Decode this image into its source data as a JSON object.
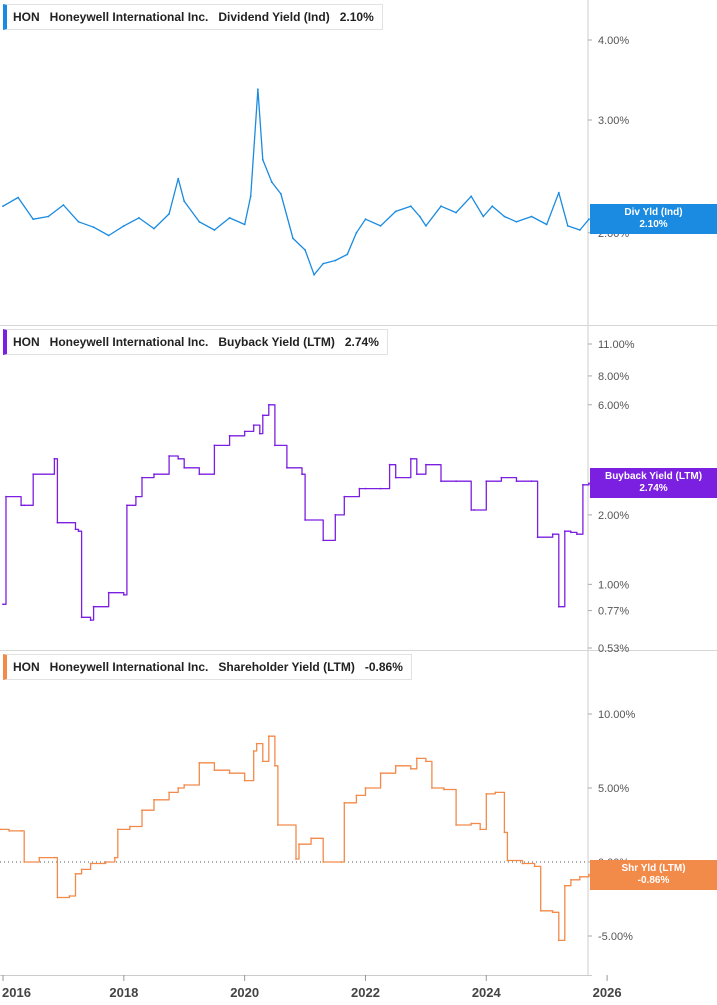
{
  "chart_data": [
    {
      "type": "line",
      "ticker": "HON",
      "company": "Honeywell International Inc.",
      "series_name": "Dividend Yield (Ind)",
      "current_value": "2.10%",
      "badge_label": "Div Yld (Ind)",
      "badge_value": "2.10%",
      "color": "#1a8be0",
      "scale": "log",
      "y_ticks": [
        4.0,
        3.0,
        2.0
      ],
      "y_tick_labels": [
        "4.00%",
        "3.00%",
        "2.00%"
      ],
      "x": [
        2016.0,
        2016.25,
        2016.5,
        2016.75,
        2017.0,
        2017.25,
        2017.5,
        2017.75,
        2018.0,
        2018.25,
        2018.5,
        2018.75,
        2018.9,
        2019.0,
        2019.25,
        2019.5,
        2019.75,
        2020.0,
        2020.1,
        2020.22,
        2020.3,
        2020.45,
        2020.6,
        2020.8,
        2021.0,
        2021.15,
        2021.3,
        2021.5,
        2021.7,
        2021.85,
        2022.0,
        2022.25,
        2022.5,
        2022.75,
        2022.9,
        2023.0,
        2023.25,
        2023.5,
        2023.75,
        2023.95,
        2024.1,
        2024.3,
        2024.5,
        2024.75,
        2025.0,
        2025.2,
        2025.35,
        2025.55,
        2025.7
      ],
      "y": [
        2.2,
        2.27,
        2.1,
        2.12,
        2.21,
        2.08,
        2.04,
        1.98,
        2.05,
        2.11,
        2.03,
        2.14,
        2.43,
        2.24,
        2.08,
        2.02,
        2.11,
        2.06,
        2.28,
        3.35,
        2.6,
        2.4,
        2.3,
        1.96,
        1.88,
        1.72,
        1.79,
        1.81,
        1.85,
        2.0,
        2.1,
        2.05,
        2.16,
        2.2,
        2.12,
        2.05,
        2.2,
        2.15,
        2.28,
        2.12,
        2.2,
        2.12,
        2.08,
        2.12,
        2.06,
        2.31,
        2.05,
        2.02,
        2.1
      ],
      "xlim": [
        2015.95,
        2025.75
      ]
    },
    {
      "type": "line",
      "ticker": "HON",
      "company": "Honeywell International Inc.",
      "series_name": "Buyback Yield (LTM)",
      "current_value": "2.74%",
      "badge_label": "Buyback Yield (LTM)",
      "badge_value": "2.74%",
      "color": "#7b1fe0",
      "scale": "log",
      "y_ticks": [
        11.0,
        8.0,
        6.0,
        2.0,
        1.0,
        0.77,
        0.53
      ],
      "y_tick_labels": [
        "11.00%",
        "8.00%",
        "6.00%",
        "2.00%",
        "1.00%",
        "0.77%",
        "0.53%"
      ],
      "x": [
        2016.0,
        2016.05,
        2016.3,
        2016.35,
        2016.5,
        2016.85,
        2016.9,
        2017.2,
        2017.25,
        2017.3,
        2017.45,
        2017.5,
        2017.75,
        2018.0,
        2018.05,
        2018.2,
        2018.3,
        2018.5,
        2018.75,
        2018.9,
        2019.0,
        2019.25,
        2019.5,
        2019.75,
        2020.0,
        2020.15,
        2020.25,
        2020.3,
        2020.4,
        2020.5,
        2020.7,
        2020.95,
        2021.0,
        2021.3,
        2021.5,
        2021.65,
        2021.9,
        2022.0,
        2022.25,
        2022.4,
        2022.5,
        2022.75,
        2022.85,
        2023.0,
        2023.25,
        2023.5,
        2023.75,
        2023.8,
        2024.0,
        2024.25,
        2024.5,
        2024.75,
        2024.85,
        2025.1,
        2025.2,
        2025.3,
        2025.4,
        2025.5,
        2025.6,
        2025.7
      ],
      "y": [
        0.82,
        2.4,
        2.2,
        2.2,
        3.0,
        3.5,
        1.85,
        1.73,
        1.7,
        0.72,
        0.7,
        0.8,
        0.92,
        0.9,
        2.2,
        2.4,
        2.9,
        3.0,
        3.6,
        3.5,
        3.2,
        3.0,
        4.0,
        4.4,
        4.6,
        4.9,
        4.5,
        5.4,
        6.0,
        4.0,
        3.2,
        3.0,
        1.9,
        1.55,
        2.0,
        2.4,
        2.6,
        2.6,
        2.6,
        3.3,
        2.9,
        3.5,
        3.0,
        3.3,
        2.8,
        2.8,
        2.1,
        2.1,
        2.8,
        2.9,
        2.8,
        2.8,
        1.6,
        1.65,
        0.8,
        1.7,
        1.68,
        1.65,
        2.7,
        2.74
      ],
      "xlim": [
        2015.95,
        2025.75
      ]
    },
    {
      "type": "line",
      "ticker": "HON",
      "company": "Honeywell International Inc.",
      "series_name": "Shareholder Yield (LTM)",
      "current_value": "-0.86%",
      "badge_label": "Shr Yld (LTM)",
      "badge_value": "-0.86%",
      "color": "#f28a4a",
      "scale": "linear",
      "y_ticks": [
        10.0,
        5.0,
        0.0,
        -5.0
      ],
      "y_tick_labels": [
        "10.00%",
        "5.00%",
        "0.00%",
        "-5.00%"
      ],
      "ylim": [
        -7.4,
        14.1
      ],
      "x": [
        2015.95,
        2016.1,
        2016.3,
        2016.35,
        2016.6,
        2016.85,
        2016.9,
        2017.1,
        2017.2,
        2017.3,
        2017.45,
        2017.7,
        2017.85,
        2017.9,
        2018.1,
        2018.3,
        2018.5,
        2018.75,
        2018.9,
        2019.0,
        2019.25,
        2019.5,
        2019.75,
        2020.0,
        2020.15,
        2020.2,
        2020.3,
        2020.4,
        2020.5,
        2020.55,
        2020.85,
        2020.9,
        2021.1,
        2021.3,
        2021.6,
        2021.65,
        2021.85,
        2022.0,
        2022.25,
        2022.5,
        2022.75,
        2022.85,
        2023.0,
        2023.1,
        2023.3,
        2023.5,
        2023.75,
        2023.9,
        2024.0,
        2024.15,
        2024.3,
        2024.35,
        2024.6,
        2024.8,
        2024.9,
        2025.1,
        2025.2,
        2025.3,
        2025.4,
        2025.55,
        2025.7
      ],
      "y": [
        2.2,
        2.1,
        2.1,
        0.0,
        0.3,
        0.3,
        -2.4,
        -2.3,
        -0.8,
        -0.5,
        -0.1,
        0.0,
        0.3,
        2.2,
        2.4,
        3.5,
        4.2,
        4.7,
        5.0,
        5.2,
        6.7,
        6.2,
        6.0,
        5.5,
        7.5,
        8.0,
        6.8,
        8.5,
        6.5,
        2.5,
        0.2,
        1.2,
        1.6,
        0.0,
        0.0,
        4.0,
        4.5,
        5.0,
        6.0,
        6.5,
        6.3,
        7.0,
        6.8,
        5.0,
        4.9,
        2.5,
        2.6,
        2.2,
        4.6,
        4.7,
        2.0,
        0.1,
        -0.1,
        -0.3,
        -3.3,
        -3.4,
        -5.3,
        -1.6,
        -1.2,
        -1.0,
        -0.86
      ],
      "xlim": [
        2015.95,
        2025.75
      ]
    }
  ],
  "x_axis": {
    "ticks": [
      2016,
      2018,
      2020,
      2022,
      2024,
      2026
    ],
    "tick_labels": [
      "2016",
      "2018",
      "2020",
      "2022",
      "2024",
      "2026"
    ]
  }
}
